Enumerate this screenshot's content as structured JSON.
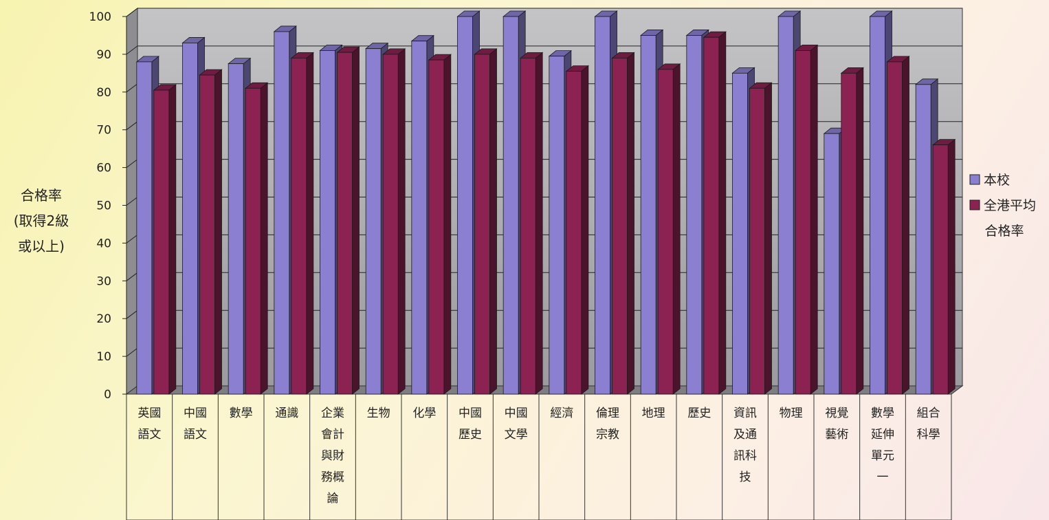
{
  "chart_data": {
    "type": "bar",
    "title": "",
    "ylabel_lines": [
      "合格率",
      "(取得2級",
      "或以上)"
    ],
    "ylim": [
      0,
      100
    ],
    "yticks": [
      0,
      10,
      20,
      30,
      40,
      50,
      60,
      70,
      80,
      90,
      100
    ],
    "grid": true,
    "legend_position": "right",
    "categories": [
      [
        "英國",
        "語文"
      ],
      [
        "中國",
        "語文"
      ],
      [
        "數學"
      ],
      [
        "通識"
      ],
      [
        "企業",
        "會計",
        "與財",
        "務概",
        "論"
      ],
      [
        "生物"
      ],
      [
        "化學"
      ],
      [
        "中國",
        "歷史"
      ],
      [
        "中國",
        "文學"
      ],
      [
        "經濟"
      ],
      [
        "倫理",
        "宗教"
      ],
      [
        "地理"
      ],
      [
        "歷史"
      ],
      [
        "資訊",
        "及通",
        "訊科",
        "技"
      ],
      [
        "物理"
      ],
      [
        "視覺",
        "藝術"
      ],
      [
        "數學",
        "延伸",
        "單元",
        "一"
      ],
      [
        "組合",
        "科學"
      ]
    ],
    "series": [
      {
        "name": "本校",
        "color": "#8a7fd0",
        "values": [
          88,
          93,
          87.5,
          96,
          91,
          91.5,
          93.5,
          100,
          100,
          89.5,
          100,
          95,
          95,
          85,
          100,
          69,
          100,
          82
        ]
      },
      {
        "name": "全港平均合格率",
        "legend_lines": [
          "全港平均",
          "合格率"
        ],
        "color": "#8b2252",
        "values": [
          80.5,
          84.5,
          81,
          89,
          90.5,
          90,
          88.5,
          90,
          89,
          85.5,
          89,
          86,
          94.5,
          81,
          91,
          85,
          88,
          66
        ]
      }
    ]
  }
}
